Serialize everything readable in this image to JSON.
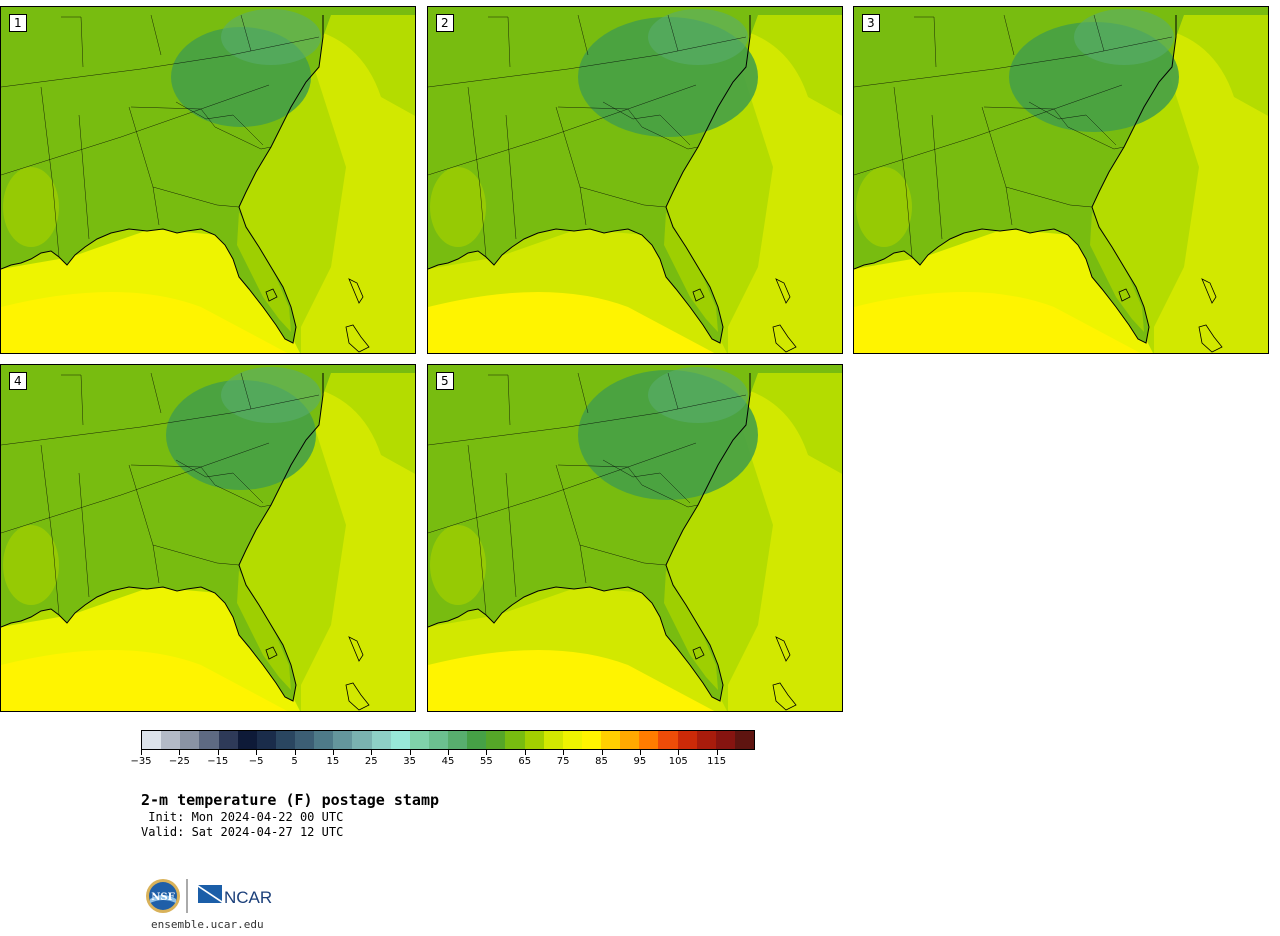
{
  "panels": [
    {
      "label": "1"
    },
    {
      "label": "2"
    },
    {
      "label": "3"
    },
    {
      "label": "4"
    },
    {
      "label": "5"
    }
  ],
  "colorbar": {
    "colors": [
      "#dde3ea",
      "#b3bac6",
      "#8a93a4",
      "#5e6a82",
      "#2e3a58",
      "#0e1a38",
      "#1a2c4a",
      "#2a4660",
      "#3c5e74",
      "#4e7a88",
      "#64969c",
      "#7ab2b0",
      "#8ed0c6",
      "#98e8d8",
      "#80d2aa",
      "#6cc090",
      "#58ae6e",
      "#46a046",
      "#55a628",
      "#78bc10",
      "#a2d000",
      "#d2e800",
      "#eef400",
      "#fff400",
      "#ffd000",
      "#ffa800",
      "#ff7c00",
      "#ee4c08",
      "#cc2a08",
      "#a81c0c",
      "#861410",
      "#5e1410"
    ],
    "ticks": [
      "−35",
      "−25",
      "−15",
      "−5",
      "5",
      "15",
      "25",
      "35",
      "45",
      "55",
      "65",
      "75",
      "85",
      "95",
      "105",
      "115"
    ]
  },
  "title": "2-m temperature (F) postage stamp",
  "init": " Init: Mon 2024-04-22 00 UTC",
  "valid": "Valid: Sat 2024-04-27 12 UTC",
  "logos": {
    "nsf": "NSF",
    "ncar": "NCAR"
  },
  "site": "ensemble.ucar.edu"
}
